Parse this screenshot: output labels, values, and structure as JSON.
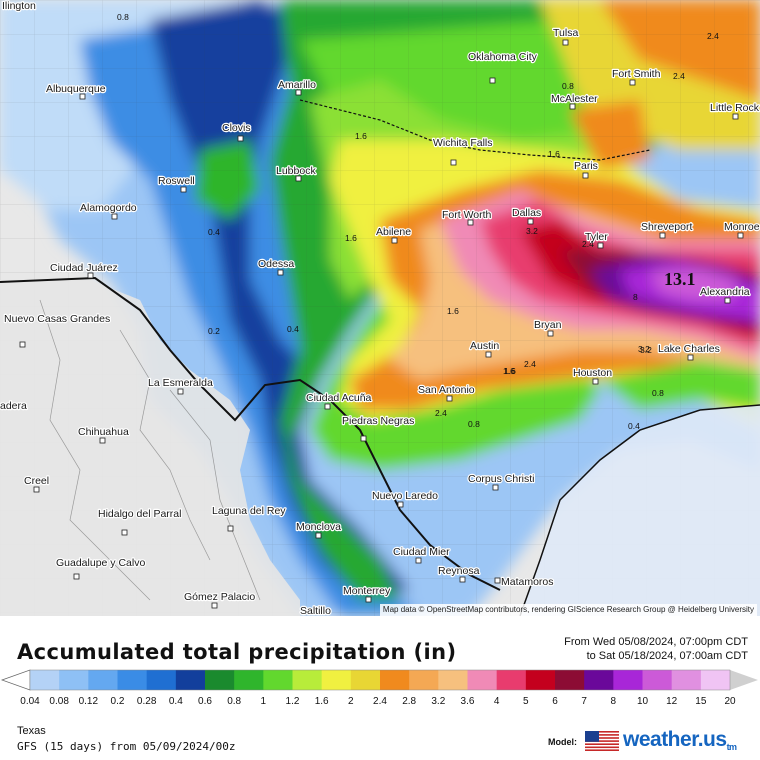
{
  "map": {
    "attribution": "Map data © OpenStreetMap contributors, rendering GIScience Research Group @ Heidelberg University",
    "cities": [
      {
        "name": "Ilington"
      },
      {
        "name": "Albuquerque"
      },
      {
        "name": "Amarillo"
      },
      {
        "name": "Clovis"
      },
      {
        "name": "Lubbock"
      },
      {
        "name": "Roswell"
      },
      {
        "name": "Alamogordo"
      },
      {
        "name": "Ciudad Juárez"
      },
      {
        "name": "Odessa"
      },
      {
        "name": "Oklahoma City"
      },
      {
        "name": "Tulsa"
      },
      {
        "name": "McAlester"
      },
      {
        "name": "Fort Smith"
      },
      {
        "name": "Little Rock"
      },
      {
        "name": "Wichita Falls"
      },
      {
        "name": "Paris"
      },
      {
        "name": "Fort Worth"
      },
      {
        "name": "Dallas"
      },
      {
        "name": "Abilene"
      },
      {
        "name": "Tyler"
      },
      {
        "name": "Shreveport"
      },
      {
        "name": "Monroe"
      },
      {
        "name": "Alexandria"
      },
      {
        "name": "Austin"
      },
      {
        "name": "Bryan"
      },
      {
        "name": "Lake Charles"
      },
      {
        "name": "Houston"
      },
      {
        "name": "San Antonio"
      },
      {
        "name": "Ciudad Acuña"
      },
      {
        "name": "Piedras Negras"
      },
      {
        "name": "La Esmeralda"
      },
      {
        "name": "Nuevo Casas Grandes"
      },
      {
        "name": "Chihuahua"
      },
      {
        "name": "Creel"
      },
      {
        "name": "Hidalgo del Parral"
      },
      {
        "name": "Laguna del Rey"
      },
      {
        "name": "Monclova"
      },
      {
        "name": "Nuevo Laredo"
      },
      {
        "name": "Corpus Christi"
      },
      {
        "name": "Ciudad Mier"
      },
      {
        "name": "Reynosa"
      },
      {
        "name": "Matamoros"
      },
      {
        "name": "Guadalupe y Calvo"
      },
      {
        "name": "Gómez Palacio"
      },
      {
        "name": "Monterrey"
      },
      {
        "name": "Saltillo"
      },
      {
        "name": "adera"
      }
    ],
    "value_labels": [
      "0.8",
      "1.6",
      "0.8",
      "2.4",
      "2.4",
      "0.4",
      "1.6",
      "1.6",
      "1.6",
      "3.2",
      "2.4",
      "0.2",
      "0.4",
      "1.6",
      "3.2",
      "1.6",
      "2.4",
      "2.4",
      "0.8",
      "0.8",
      "0.4",
      "13.1",
      "8",
      "3.2"
    ],
    "max_value": "13.1"
  },
  "header": {
    "title": "Accumulated total precipitation (in)",
    "from": "From Wed 05/08/2024, 07:00pm CDT",
    "to": "to Sat 05/18/2024, 07:00am CDT"
  },
  "legend": {
    "ticks": [
      "0.04",
      "0.08",
      "0.12",
      "0.2",
      "0.28",
      "0.4",
      "0.6",
      "0.8",
      "1",
      "1.2",
      "1.6",
      "2",
      "2.4",
      "2.8",
      "3.2",
      "3.6",
      "4",
      "5",
      "6",
      "7",
      "8",
      "10",
      "12",
      "15",
      "20"
    ],
    "colors": [
      "#b4d2f6",
      "#8ec0f5",
      "#64a8f0",
      "#3a8ce6",
      "#1f6fd2",
      "#123f9c",
      "#1a8a2e",
      "#2fb52c",
      "#62d82e",
      "#b8ec3a",
      "#f0f040",
      "#e8d634",
      "#f08a1e",
      "#f4a854",
      "#f6c07e",
      "#f08ab6",
      "#e83c6e",
      "#c4001e",
      "#8c0c34",
      "#6a089a",
      "#a826d8",
      "#cc5ad8",
      "#e090e0",
      "#f0c4f4",
      "#f8e8fa",
      "#d0d0d0"
    ]
  },
  "footer": {
    "region": "Texas",
    "model_run": "GFS (15 days) from 05/09/2024/00z",
    "model_label": "Model:",
    "brand": "weather.us",
    "brand_suffix": "tm"
  }
}
